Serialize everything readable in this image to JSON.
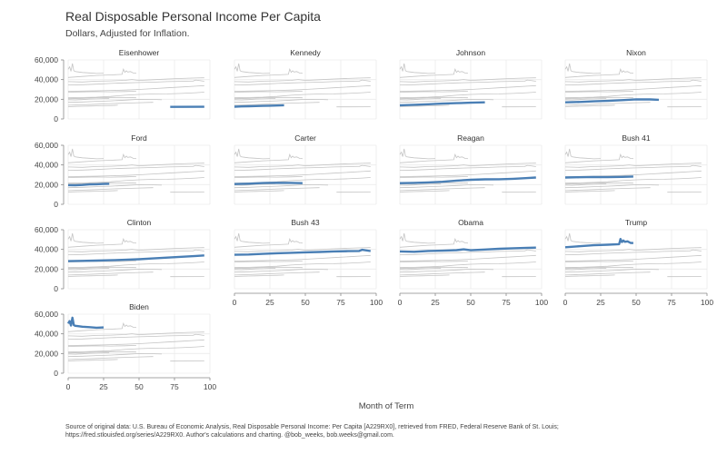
{
  "title": "Real Disposable Personal Income Per Capita",
  "subtitle": "Dollars, Adjusted for Inflation.",
  "caption": {
    "line1": "Source of original data: U.S. Bureau of Economic Analysis, Real Disposable Personal Income: Per Capita [A229RX0], retrieved from FRED, Federal Reserve Bank of St. Louis;",
    "line2": "https://fred.stlouisfed.org/series/A229RX0. Author's calculations and charting. @bob_weeks, bob.weeks@gmail.com."
  },
  "colors": {
    "highlight": "#4a7fb5",
    "background_series": "#c4c4c4",
    "axis": "#888888",
    "grid": "#ebebeb"
  },
  "chart_data": {
    "type": "line",
    "layout": "small-multiples",
    "xlabel": "Month of Term",
    "ylabel": "",
    "xlim": [
      0,
      100
    ],
    "ylim": [
      0,
      60000
    ],
    "x_ticks": [
      0,
      25,
      50,
      75,
      100
    ],
    "y_ticks": [
      0,
      20000,
      40000,
      60000
    ],
    "y_tick_labels": [
      "0",
      "20,000",
      "40,000",
      "60,000"
    ],
    "series": [
      {
        "name": "Eisenhower",
        "x": [
          72,
          96
        ],
        "values": [
          12300,
          12400
        ]
      },
      {
        "name": "Kennedy",
        "x": [
          0,
          5,
          10,
          15,
          20,
          25,
          30,
          35
        ],
        "values": [
          12500,
          12700,
          12900,
          13100,
          13300,
          13500,
          13700,
          13900
        ]
      },
      {
        "name": "Johnson",
        "x": [
          0,
          10,
          20,
          30,
          40,
          50,
          60
        ],
        "values": [
          13900,
          14400,
          15000,
          15600,
          16100,
          16500,
          16900
        ]
      },
      {
        "name": "Nixon",
        "x": [
          0,
          10,
          20,
          30,
          40,
          50,
          60,
          66
        ],
        "values": [
          16900,
          17300,
          17900,
          18400,
          19100,
          19900,
          19800,
          19500
        ]
      },
      {
        "name": "Ford",
        "x": [
          0,
          5,
          10,
          15,
          20,
          25,
          29
        ],
        "values": [
          19500,
          19300,
          19700,
          20200,
          20400,
          20700,
          20900
        ]
      },
      {
        "name": "Carter",
        "x": [
          0,
          10,
          20,
          30,
          40,
          48
        ],
        "values": [
          20600,
          21000,
          21600,
          21900,
          21800,
          21500
        ]
      },
      {
        "name": "Reagan",
        "x": [
          0,
          10,
          20,
          30,
          40,
          50,
          60,
          70,
          80,
          90,
          96
        ],
        "values": [
          21500,
          21800,
          22200,
          22900,
          24100,
          24900,
          25400,
          25500,
          25900,
          26700,
          27200
        ]
      },
      {
        "name": "Bush 41",
        "x": [
          0,
          10,
          20,
          30,
          40,
          48
        ],
        "values": [
          27200,
          27500,
          27800,
          27600,
          27900,
          28200
        ]
      },
      {
        "name": "Clinton",
        "x": [
          0,
          10,
          20,
          30,
          40,
          50,
          60,
          70,
          80,
          90,
          96
        ],
        "values": [
          28100,
          28300,
          28600,
          29000,
          29400,
          30000,
          30800,
          31700,
          32500,
          33300,
          33900
        ]
      },
      {
        "name": "Bush 43",
        "x": [
          0,
          10,
          20,
          30,
          40,
          50,
          60,
          70,
          80,
          88,
          90,
          96
        ],
        "values": [
          34500,
          34800,
          35400,
          36100,
          36600,
          37000,
          37400,
          37900,
          38200,
          38400,
          39600,
          38300
        ]
      },
      {
        "name": "Obama",
        "x": [
          0,
          10,
          20,
          30,
          40,
          45,
          50,
          60,
          70,
          80,
          90,
          96
        ],
        "values": [
          37900,
          37600,
          38400,
          38700,
          39200,
          40100,
          39100,
          39900,
          40600,
          41200,
          41600,
          41800
        ]
      },
      {
        "name": "Trump",
        "x": [
          0,
          10,
          20,
          30,
          38,
          39,
          40,
          41,
          42,
          44,
          46,
          48
        ],
        "values": [
          42200,
          43200,
          44200,
          44800,
          45300,
          50600,
          47400,
          49000,
          47700,
          48200,
          46600,
          46400
        ]
      },
      {
        "name": "Biden",
        "x": [
          0,
          1,
          2,
          3,
          4,
          5,
          7,
          10,
          15,
          20,
          25
        ],
        "values": [
          50500,
          53000,
          48500,
          56400,
          49000,
          48200,
          47800,
          47300,
          46800,
          46200,
          46500
        ]
      }
    ]
  }
}
